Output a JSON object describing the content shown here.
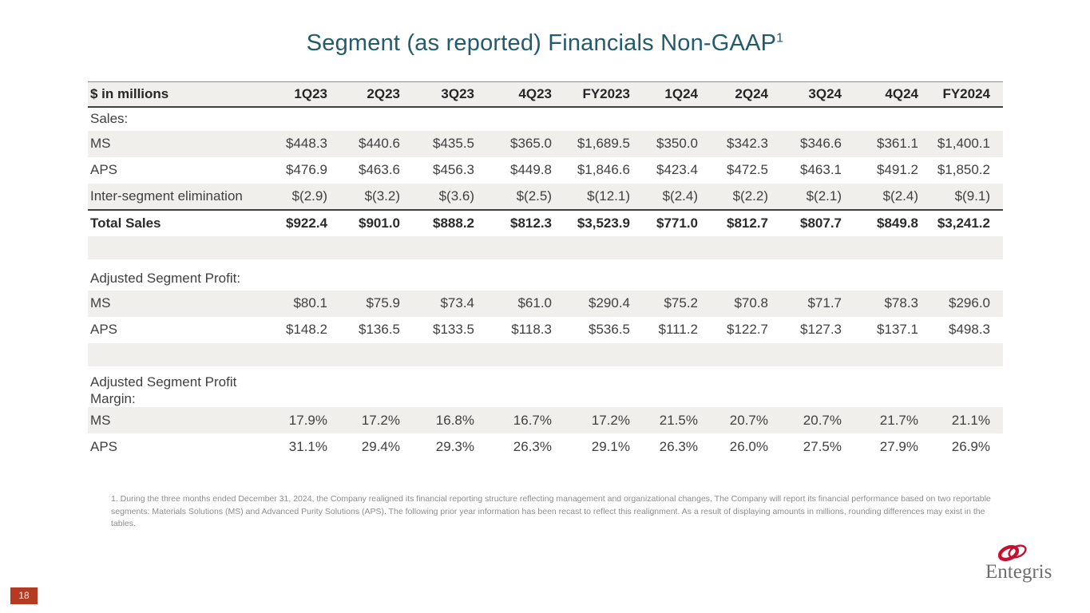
{
  "slide": {
    "title": "Segment (as reported) Financials Non-GAAP",
    "title_superscript": "1",
    "page_number": "18"
  },
  "table": {
    "unit_label": "$ in millions",
    "columns": [
      "1Q23",
      "2Q23",
      "3Q23",
      "4Q23",
      "FY2023",
      "1Q24",
      "2Q24",
      "3Q24",
      "4Q24",
      "FY2024"
    ],
    "rows": [
      {
        "type": "section",
        "label": "Sales:"
      },
      {
        "type": "data",
        "shade": true,
        "label": "MS",
        "values": [
          "$448.3",
          "$440.6",
          "$435.5",
          "$365.0",
          "$1,689.5",
          "$350.0",
          "$342.3",
          "$346.6",
          "$361.1",
          "$1,400.1"
        ]
      },
      {
        "type": "data",
        "shade": false,
        "label": "APS",
        "values": [
          "$476.9",
          "$463.6",
          "$456.3",
          "$449.8",
          "$1,846.6",
          "$423.4",
          "$472.5",
          "$463.1",
          "$491.2",
          "$1,850.2"
        ]
      },
      {
        "type": "data",
        "shade": true,
        "rule_below": true,
        "label": "Inter-segment elimination",
        "values": [
          "$(2.9)",
          "$(3.2)",
          "$(3.6)",
          "$(2.5)",
          "$(12.1)",
          "$(2.4)",
          "$(2.2)",
          "$(2.1)",
          "$(2.4)",
          "$(9.1)"
        ]
      },
      {
        "type": "data",
        "shade": false,
        "bold": true,
        "label": "Total Sales",
        "values": [
          "$922.4",
          "$901.0",
          "$888.2",
          "$812.3",
          "$3,523.9",
          "$771.0",
          "$812.7",
          "$807.7",
          "$849.8",
          "$3,241.2"
        ]
      },
      {
        "type": "spacer",
        "shade": true
      },
      {
        "type": "gap"
      },
      {
        "type": "section",
        "label": "Adjusted Segment Profit:"
      },
      {
        "type": "data",
        "shade": true,
        "label": "MS",
        "values": [
          "$80.1",
          "$75.9",
          "$73.4",
          "$61.0",
          "$290.4",
          "$75.2",
          "$70.8",
          "$71.7",
          "$78.3",
          "$296.0"
        ]
      },
      {
        "type": "data",
        "shade": false,
        "label": "APS",
        "values": [
          "$148.2",
          "$136.5",
          "$133.5",
          "$118.3",
          "$536.5",
          "$111.2",
          "$122.7",
          "$127.3",
          "$137.1",
          "$498.3"
        ]
      },
      {
        "type": "spacer",
        "shade": true
      },
      {
        "type": "gap"
      },
      {
        "type": "section",
        "label": "Adjusted Segment Profit Margin:"
      },
      {
        "type": "data",
        "shade": true,
        "label": "MS",
        "values": [
          "17.9%",
          "17.2%",
          "16.8%",
          "16.7%",
          "17.2%",
          "21.5%",
          "20.7%",
          "20.7%",
          "21.7%",
          "21.1%"
        ]
      },
      {
        "type": "data",
        "shade": false,
        "label": "APS",
        "values": [
          "31.1%",
          "29.4%",
          "29.3%",
          "26.3%",
          "29.1%",
          "26.3%",
          "26.0%",
          "27.5%",
          "27.9%",
          "26.9%"
        ]
      }
    ]
  },
  "footnote": "1. During the three months ended December 31, 2024, the Company realigned its financial reporting structure reflecting management and organizational changes. The Company will report its financial performance based on two reportable segments: Materials Solutions (MS) and Advanced Purity Solutions (APS). The following prior year information has been recast to reflect this realignment. As a result of displaying amounts in millions, rounding differences may exist in the tables.",
  "logo": {
    "text": "Entegris"
  },
  "colors": {
    "title_teal": "#235b6b",
    "stripe_gray": "#f0efec",
    "rule_dark": "#3f3f3f",
    "badge_red": "#b43a21",
    "logo_red": "#c8102e",
    "logo_gray": "#6d6e71",
    "footnote_gray": "#8c8c8c"
  }
}
